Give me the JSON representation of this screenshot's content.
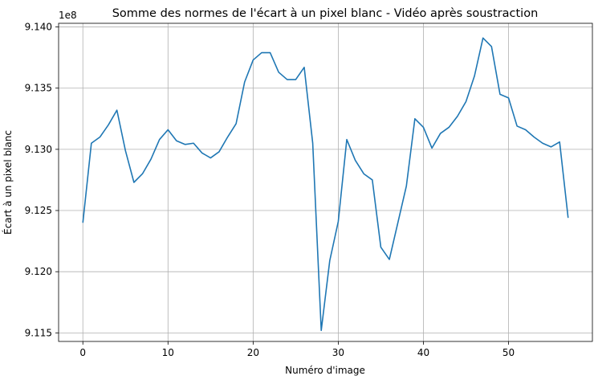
{
  "chart_data": {
    "type": "line",
    "title": "Somme des normes de l'écart à un pixel blanc - Vidéo après soustraction",
    "xlabel": "Numéro d'image",
    "ylabel": "Écart à un pixel blanc",
    "y_offset_text": "1e8",
    "xlim": [
      -2.85,
      59.85
    ],
    "ylim": [
      9.1143,
      9.1403
    ],
    "grid": true,
    "x_ticks": [
      0,
      10,
      20,
      30,
      40,
      50
    ],
    "x_tick_labels": [
      "0",
      "10",
      "20",
      "30",
      "40",
      "50"
    ],
    "y_ticks": [
      9.115,
      9.12,
      9.125,
      9.13,
      9.135,
      9.14
    ],
    "y_tick_labels": [
      "9.115",
      "9.120",
      "9.125",
      "9.130",
      "9.135",
      "9.140"
    ],
    "line_color": "#1f77b4",
    "series": [
      {
        "name": "",
        "x": [
          0,
          1,
          2,
          3,
          4,
          5,
          6,
          7,
          8,
          9,
          10,
          11,
          12,
          13,
          14,
          15,
          16,
          17,
          18,
          19,
          20,
          21,
          22,
          23,
          24,
          25,
          26,
          27,
          28,
          29,
          30,
          31,
          32,
          33,
          34,
          35,
          36,
          37,
          38,
          39,
          40,
          41,
          42,
          43,
          44,
          45,
          46,
          47,
          48,
          49,
          50,
          51,
          52,
          53,
          54,
          55,
          56,
          57
        ],
        "values": [
          9.124,
          9.1305,
          9.131,
          9.132,
          9.1332,
          9.1299,
          9.1273,
          9.128,
          9.1292,
          9.1308,
          9.1316,
          9.1307,
          9.1304,
          9.1305,
          9.1297,
          9.1293,
          9.1298,
          9.131,
          9.1321,
          9.1355,
          9.1373,
          9.1379,
          9.1379,
          9.1363,
          9.1357,
          9.1357,
          9.1367,
          9.1305,
          9.1152,
          9.1209,
          9.1241,
          9.1308,
          9.1291,
          9.128,
          9.1275,
          9.122,
          9.121,
          9.124,
          9.127,
          9.1325,
          9.1318,
          9.1301,
          9.1313,
          9.1318,
          9.1327,
          9.1339,
          9.136,
          9.1391,
          9.1384,
          9.1345,
          9.1342,
          9.1319,
          9.1316,
          9.131,
          9.1305,
          9.1302,
          9.1306,
          9.1244
        ]
      }
    ]
  }
}
